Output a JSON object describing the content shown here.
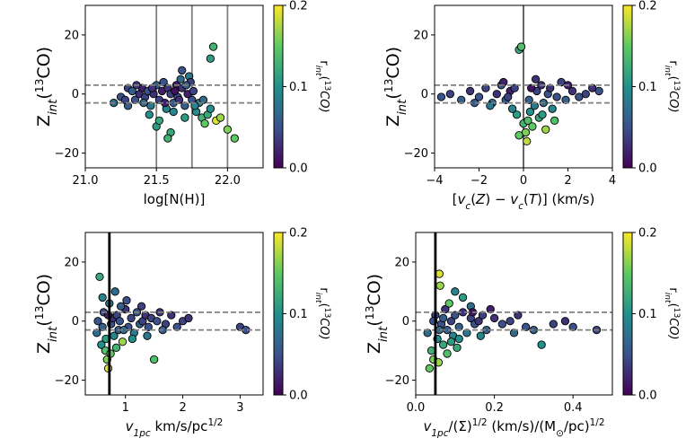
{
  "colorbar": {
    "label": "r_int(13CO)",
    "ticks": [
      "0.0",
      "0.1",
      "0.2"
    ],
    "range": [
      0,
      0.2
    ],
    "colormap": [
      "#440154",
      "#3b528b",
      "#21908d",
      "#5dc963",
      "#fde725"
    ]
  },
  "ylabel": "Z_int(13CO)",
  "chart_data": [
    {
      "type": "scatter",
      "id": "p1",
      "xlabel": "log[N(H)]",
      "xlim": [
        21.0,
        22.25
      ],
      "ylim": [
        -25,
        30
      ],
      "xticks": [
        "21.0",
        "21.5",
        "22.0"
      ],
      "xtick_values": [
        21.0,
        21.5,
        22.0
      ],
      "yticks": [
        "−20",
        "0",
        "20"
      ],
      "ytick_values": [
        -20,
        0,
        20
      ],
      "hlines": [
        3,
        -3
      ],
      "vlines_gray": [
        21.5,
        21.75,
        22.0
      ],
      "vlines_black": [],
      "points": [
        [
          21.2,
          -3,
          0.07
        ],
        [
          21.25,
          -1,
          0.05
        ],
        [
          21.3,
          2,
          0.04
        ],
        [
          21.33,
          1,
          0.06
        ],
        [
          21.35,
          -2,
          0.05
        ],
        [
          21.38,
          0,
          0.03
        ],
        [
          21.4,
          2,
          0.02
        ],
        [
          21.42,
          -1,
          0.04
        ],
        [
          21.44,
          1,
          0.05
        ],
        [
          21.46,
          -4,
          0.08
        ],
        [
          21.48,
          0,
          0.03
        ],
        [
          21.5,
          3,
          0.06
        ],
        [
          21.52,
          -2,
          0.04
        ],
        [
          21.54,
          1,
          0.02
        ],
        [
          21.55,
          4,
          0.05
        ],
        [
          21.57,
          -5,
          0.09
        ],
        [
          21.58,
          2,
          0.03
        ],
        [
          21.6,
          0,
          0.04
        ],
        [
          21.62,
          -3,
          0.06
        ],
        [
          21.64,
          3,
          0.02
        ],
        [
          21.65,
          -1,
          0.05
        ],
        [
          21.67,
          5,
          0.07
        ],
        [
          21.68,
          2,
          0.03
        ],
        [
          21.7,
          -4,
          0.06
        ],
        [
          21.72,
          0,
          0.02
        ],
        [
          21.73,
          6,
          0.08
        ],
        [
          21.75,
          -2,
          0.05
        ],
        [
          21.76,
          1,
          0.04
        ],
        [
          21.78,
          -6,
          0.1
        ],
        [
          21.8,
          -3,
          0.08
        ],
        [
          21.82,
          -8,
          0.13
        ],
        [
          21.84,
          -10,
          0.15
        ],
        [
          21.86,
          -7,
          0.12
        ],
        [
          21.88,
          -5,
          0.1
        ],
        [
          21.9,
          16,
          0.13
        ],
        [
          21.88,
          12,
          0.11
        ],
        [
          21.92,
          -9,
          0.19
        ],
        [
          21.95,
          -8,
          0.17
        ],
        [
          22.0,
          -12,
          0.16
        ],
        [
          22.05,
          -15,
          0.15
        ],
        [
          21.6,
          -13,
          0.12
        ],
        [
          21.58,
          -15,
          0.13
        ],
        [
          21.5,
          -11,
          0.11
        ],
        [
          21.45,
          -7,
          0.1
        ],
        [
          21.52,
          -9,
          0.12
        ],
        [
          21.62,
          -6,
          0.09
        ],
        [
          21.7,
          -8,
          0.11
        ],
        [
          21.3,
          -4,
          0.06
        ],
        [
          21.28,
          -2,
          0.04
        ],
        [
          21.36,
          3,
          0.03
        ],
        [
          21.68,
          8,
          0.05
        ],
        [
          21.74,
          4,
          0.04
        ],
        [
          21.66,
          -2,
          0.03
        ],
        [
          21.56,
          -3,
          0.02
        ],
        [
          21.47,
          2,
          0.03
        ],
        [
          21.41,
          -3,
          0.07
        ],
        [
          21.63,
          1,
          0.01
        ],
        [
          21.71,
          3,
          0.06
        ],
        [
          21.77,
          -4,
          0.09
        ],
        [
          21.83,
          -2,
          0.07
        ]
      ]
    },
    {
      "type": "scatter",
      "id": "p2",
      "xlabel": "[v_c(Z) − v_c(T)] (km/s)",
      "xlim": [
        -4,
        4
      ],
      "ylim": [
        -25,
        30
      ],
      "xticks": [
        "−4",
        "−2",
        "0",
        "2",
        "4"
      ],
      "xtick_values": [
        -4,
        -2,
        0,
        2,
        4
      ],
      "yticks": [
        "−20",
        "0",
        "20"
      ],
      "ytick_values": [
        -20,
        0,
        20
      ],
      "hlines": [
        3,
        -3
      ],
      "vlines_gray": [],
      "vlines_black": [
        0
      ],
      "points": [
        [
          -3.7,
          -1,
          0.05
        ],
        [
          -3.3,
          0,
          0.04
        ],
        [
          -2.8,
          -2,
          0.06
        ],
        [
          -2.4,
          1,
          0.03
        ],
        [
          -2.0,
          -1,
          0.05
        ],
        [
          -1.7,
          2,
          0.04
        ],
        [
          -1.4,
          -3,
          0.07
        ],
        [
          -1.2,
          0,
          0.03
        ],
        [
          -1.0,
          3,
          0.05
        ],
        [
          -0.8,
          -2,
          0.06
        ],
        [
          -0.6,
          1,
          0.02
        ],
        [
          -0.5,
          -5,
          0.09
        ],
        [
          -0.4,
          2,
          0.04
        ],
        [
          -0.3,
          -7,
          0.11
        ],
        [
          -0.2,
          15,
          0.12
        ],
        [
          -0.1,
          16,
          0.14
        ],
        [
          0.0,
          -10,
          0.13
        ],
        [
          0.1,
          -13,
          0.16
        ],
        [
          0.15,
          -16,
          0.18
        ],
        [
          0.2,
          -9,
          0.14
        ],
        [
          0.3,
          -6,
          0.1
        ],
        [
          0.4,
          -11,
          0.15
        ],
        [
          0.5,
          -4,
          0.08
        ],
        [
          0.6,
          1,
          0.04
        ],
        [
          0.7,
          -8,
          0.12
        ],
        [
          0.8,
          3,
          0.03
        ],
        [
          0.9,
          -3,
          0.07
        ],
        [
          1.0,
          -12,
          0.17
        ],
        [
          1.1,
          0,
          0.05
        ],
        [
          1.2,
          2,
          0.03
        ],
        [
          1.3,
          -5,
          0.09
        ],
        [
          1.5,
          -1,
          0.05
        ],
        [
          1.7,
          4,
          0.04
        ],
        [
          1.9,
          -2,
          0.06
        ],
        [
          2.2,
          1,
          0.03
        ],
        [
          2.5,
          -1,
          0.05
        ],
        [
          2.8,
          0,
          0.04
        ],
        [
          3.1,
          2,
          0.03
        ],
        [
          3.4,
          1,
          0.05
        ],
        [
          -0.9,
          4,
          0.02
        ],
        [
          -0.2,
          -14,
          0.15
        ],
        [
          0.25,
          -2,
          0.06
        ],
        [
          -1.5,
          -4,
          0.08
        ],
        [
          0.55,
          5,
          0.03
        ],
        [
          1.4,
          -9,
          0.14
        ],
        [
          0.85,
          -7,
          0.11
        ],
        [
          -0.7,
          -1,
          0.04
        ],
        [
          2.0,
          3,
          0.02
        ],
        [
          -2.2,
          -3,
          0.06
        ],
        [
          0.35,
          2,
          0.01
        ]
      ]
    },
    {
      "type": "scatter",
      "id": "p3",
      "xlabel": "v_1pc  km/s/pc^1/2",
      "xlim": [
        0.3,
        3.4
      ],
      "ylim": [
        -25,
        30
      ],
      "xticks": [
        "1",
        "2",
        "3"
      ],
      "xtick_values": [
        1,
        2,
        3
      ],
      "yticks": [
        "−20",
        "0",
        "20"
      ],
      "ytick_values": [
        -20,
        0,
        20
      ],
      "hlines": [
        3,
        -3
      ],
      "vlines_gray": [],
      "vlines_black_thick": [
        0.72
      ],
      "points": [
        [
          0.5,
          -4,
          0.07
        ],
        [
          0.55,
          15,
          0.12
        ],
        [
          0.58,
          -8,
          0.1
        ],
        [
          0.6,
          -2,
          0.06
        ],
        [
          0.62,
          3,
          0.04
        ],
        [
          0.65,
          -10,
          0.14
        ],
        [
          0.68,
          -13,
          0.16
        ],
        [
          0.7,
          -16,
          0.19
        ],
        [
          0.72,
          6,
          0.08
        ],
        [
          0.75,
          -1,
          0.05
        ],
        [
          0.78,
          1,
          0.03
        ],
        [
          0.8,
          -5,
          0.09
        ],
        [
          0.82,
          10,
          0.07
        ],
        [
          0.85,
          2,
          0.04
        ],
        [
          0.88,
          -3,
          0.06
        ],
        [
          0.9,
          0,
          0.05
        ],
        [
          0.95,
          -7,
          0.17
        ],
        [
          1.0,
          4,
          0.03
        ],
        [
          1.05,
          -2,
          0.05
        ],
        [
          1.1,
          1,
          0.04
        ],
        [
          1.15,
          -4,
          0.08
        ],
        [
          1.2,
          3,
          0.05
        ],
        [
          1.25,
          -1,
          0.06
        ],
        [
          1.3,
          0,
          0.04
        ],
        [
          1.35,
          2,
          0.03
        ],
        [
          1.4,
          -2,
          0.05
        ],
        [
          1.45,
          1,
          0.04
        ],
        [
          1.5,
          -13,
          0.14
        ],
        [
          1.55,
          0,
          0.05
        ],
        [
          1.6,
          3,
          0.03
        ],
        [
          1.7,
          -1,
          0.04
        ],
        [
          1.8,
          2,
          0.03
        ],
        [
          1.9,
          -2,
          0.05
        ],
        [
          2.0,
          0,
          0.04
        ],
        [
          2.1,
          1,
          0.03
        ],
        [
          3.0,
          -2,
          0.04
        ],
        [
          3.1,
          -3,
          0.05
        ],
        [
          0.6,
          8,
          0.09
        ],
        [
          0.66,
          -6,
          0.11
        ],
        [
          0.92,
          5,
          0.06
        ],
        [
          1.12,
          -6,
          0.1
        ],
        [
          0.52,
          0,
          0.05
        ],
        [
          0.74,
          -11,
          0.15
        ],
        [
          1.28,
          5,
          0.04
        ],
        [
          1.65,
          -3,
          0.06
        ],
        [
          0.84,
          -9,
          0.13
        ],
        [
          1.02,
          7,
          0.05
        ],
        [
          0.7,
          2,
          0.02
        ],
        [
          1.38,
          -5,
          0.08
        ],
        [
          0.97,
          -3,
          0.07
        ]
      ]
    },
    {
      "type": "scatter",
      "id": "p4",
      "xlabel": "v_1pc/(Σ)^1/2 (km/s)/(M⊙/pc)^1/2",
      "xlim": [
        0.0,
        0.5
      ],
      "ylim": [
        -25,
        30
      ],
      "xticks": [
        "0.0",
        "0.2",
        "0.4"
      ],
      "xtick_values": [
        0.0,
        0.2,
        0.4
      ],
      "yticks": [
        "−20",
        "0",
        "20"
      ],
      "ytick_values": [
        -20,
        0,
        20
      ],
      "hlines": [
        3,
        -3
      ],
      "vlines_gray": [],
      "vlines_black_thick": [
        0.05
      ],
      "points": [
        [
          0.03,
          -4,
          0.07
        ],
        [
          0.035,
          -16,
          0.15
        ],
        [
          0.04,
          -10,
          0.13
        ],
        [
          0.045,
          -13,
          0.16
        ],
        [
          0.05,
          2,
          0.04
        ],
        [
          0.055,
          -6,
          0.1
        ],
        [
          0.06,
          16,
          0.19
        ],
        [
          0.062,
          12,
          0.17
        ],
        [
          0.065,
          -1,
          0.05
        ],
        [
          0.07,
          -8,
          0.12
        ],
        [
          0.075,
          4,
          0.03
        ],
        [
          0.08,
          -3,
          0.06
        ],
        [
          0.085,
          6,
          0.15
        ],
        [
          0.09,
          0,
          0.04
        ],
        [
          0.095,
          -5,
          0.09
        ],
        [
          0.1,
          2,
          0.05
        ],
        [
          0.11,
          -2,
          0.06
        ],
        [
          0.12,
          3,
          0.03
        ],
        [
          0.13,
          -4,
          0.08
        ],
        [
          0.14,
          1,
          0.04
        ],
        [
          0.15,
          -1,
          0.05
        ],
        [
          0.16,
          0,
          0.03
        ],
        [
          0.17,
          2,
          0.04
        ],
        [
          0.18,
          -3,
          0.06
        ],
        [
          0.2,
          1,
          0.03
        ],
        [
          0.22,
          -1,
          0.05
        ],
        [
          0.24,
          0,
          0.04
        ],
        [
          0.26,
          2,
          0.03
        ],
        [
          0.28,
          -2,
          0.05
        ],
        [
          0.3,
          -3,
          0.06
        ],
        [
          0.32,
          -8,
          0.1
        ],
        [
          0.35,
          -1,
          0.04
        ],
        [
          0.38,
          0,
          0.03
        ],
        [
          0.4,
          -2,
          0.05
        ],
        [
          0.46,
          -3,
          0.04
        ],
        [
          0.1,
          10,
          0.09
        ],
        [
          0.12,
          8,
          0.11
        ],
        [
          0.14,
          5,
          0.07
        ],
        [
          0.08,
          -11,
          0.14
        ],
        [
          0.09,
          -7,
          0.11
        ],
        [
          0.06,
          -3,
          0.07
        ],
        [
          0.11,
          -6,
          0.1
        ],
        [
          0.145,
          3,
          0.01
        ],
        [
          0.19,
          4,
          0.02
        ],
        [
          0.07,
          1,
          0.06
        ],
        [
          0.058,
          -14,
          0.17
        ],
        [
          0.105,
          -9,
          0.12
        ],
        [
          0.25,
          -4,
          0.07
        ],
        [
          0.165,
          -5,
          0.09
        ],
        [
          0.045,
          0,
          0.05
        ]
      ]
    }
  ]
}
